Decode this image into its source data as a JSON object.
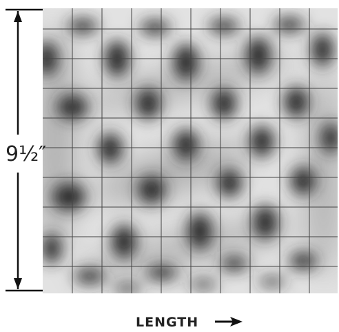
{
  "figure": {
    "dimension_label": "9½″",
    "axis_label": "LENGTH"
  }
}
